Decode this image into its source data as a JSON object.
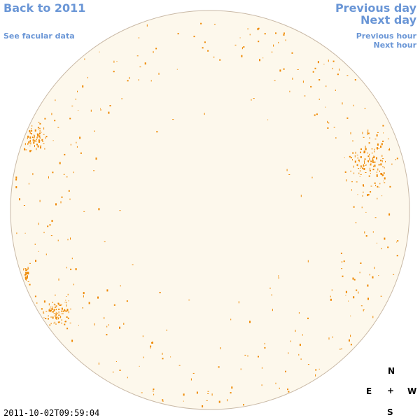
{
  "nav": {
    "back_year": "Back to 2011",
    "facular": "See facular data",
    "previous_day": "Previous day",
    "next_day": "Next day",
    "previous_hour": "Previous hour",
    "next_hour": "Next hour"
  },
  "compass": {
    "north": "N",
    "south": "S",
    "east": "E",
    "west": "W",
    "center": "+"
  },
  "timestamp": "2011-10-02T09:59:04",
  "colors": {
    "disk_fill": "#fdf8ec",
    "disk_edge": "#c9b9a6",
    "facula": "#ee8800",
    "link": "#6a96d6"
  }
}
